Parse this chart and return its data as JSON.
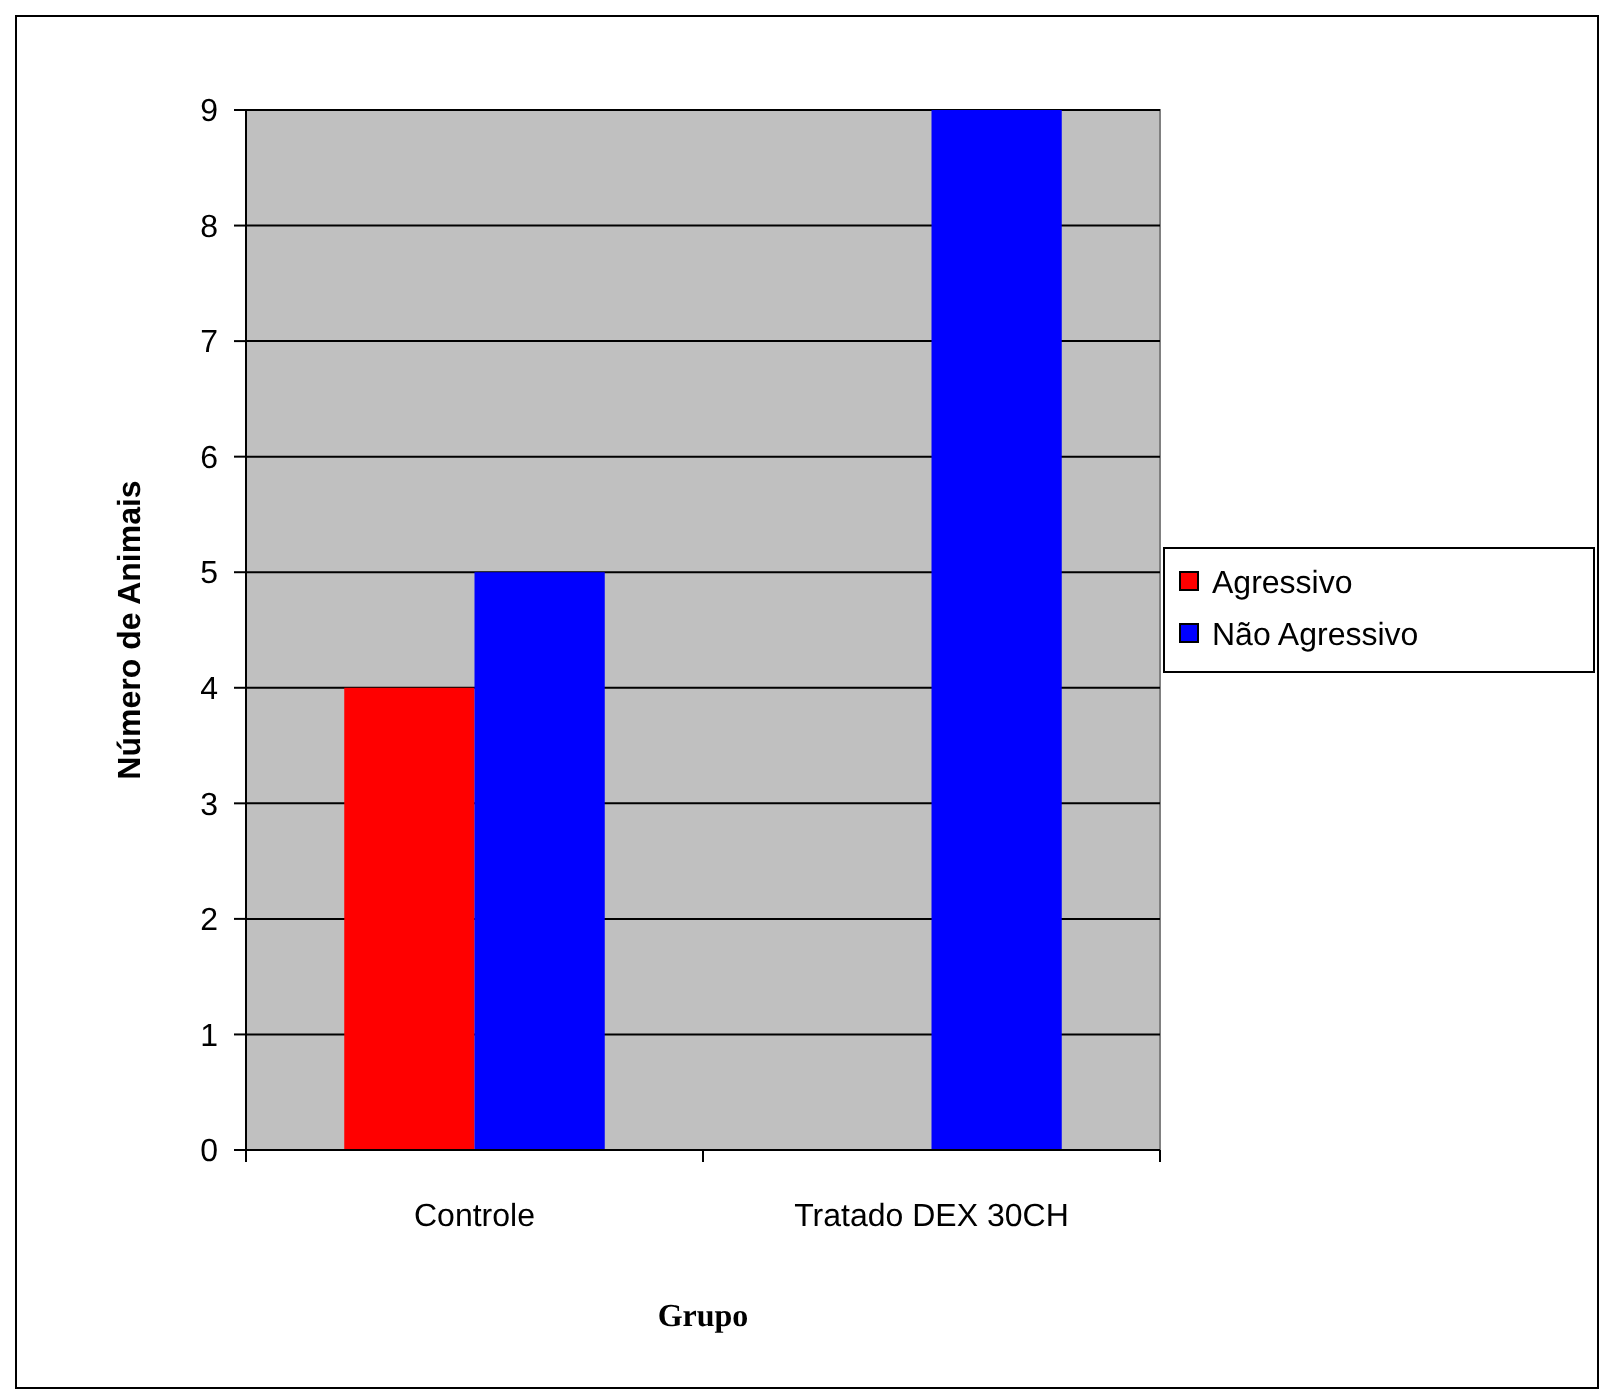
{
  "chart_data": {
    "type": "bar",
    "xlabel": "Grupo",
    "ylabel": "Número de Animais",
    "categories": [
      "Controle",
      "Tratado DEX 30CH"
    ],
    "series": [
      {
        "name": "Agressivo",
        "color": "#ff0000",
        "values": [
          4,
          0
        ]
      },
      {
        "name": "Não Agressivo",
        "color": "#0000ff",
        "values": [
          5,
          9
        ]
      }
    ],
    "ylim": [
      0,
      9
    ],
    "yticks": [
      0,
      1,
      2,
      3,
      4,
      5,
      6,
      7,
      8,
      9
    ],
    "grid": "y",
    "legend": "right"
  }
}
